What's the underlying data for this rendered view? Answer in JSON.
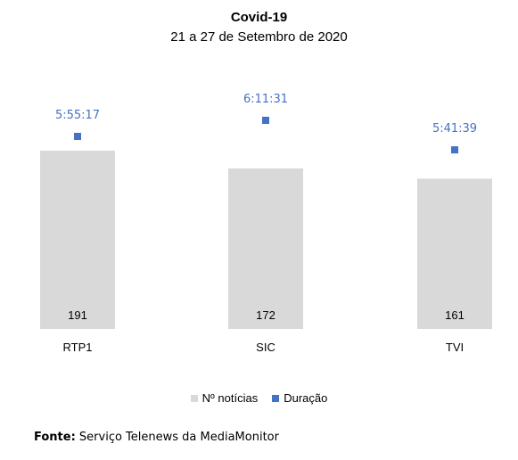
{
  "chart_data": {
    "type": "bar",
    "title": "Covid-19",
    "subtitle": "21 a 27 de Setembro de 2020",
    "categories": [
      "RTP1",
      "SIC",
      "TVI"
    ],
    "series": [
      {
        "name": "Nº notícias",
        "type": "bar",
        "color": "#d9d9d9",
        "values": [
          191,
          172,
          161
        ]
      },
      {
        "name": "Duração",
        "type": "marker",
        "color": "#4472c4",
        "values": [
          "5:55:17",
          "6:11:31",
          "5:41:39"
        ],
        "seconds": [
          21317,
          22291,
          20499
        ]
      }
    ]
  },
  "source": {
    "label": "Fonte:",
    "text": " Serviço Telenews da MediaMonitor"
  }
}
